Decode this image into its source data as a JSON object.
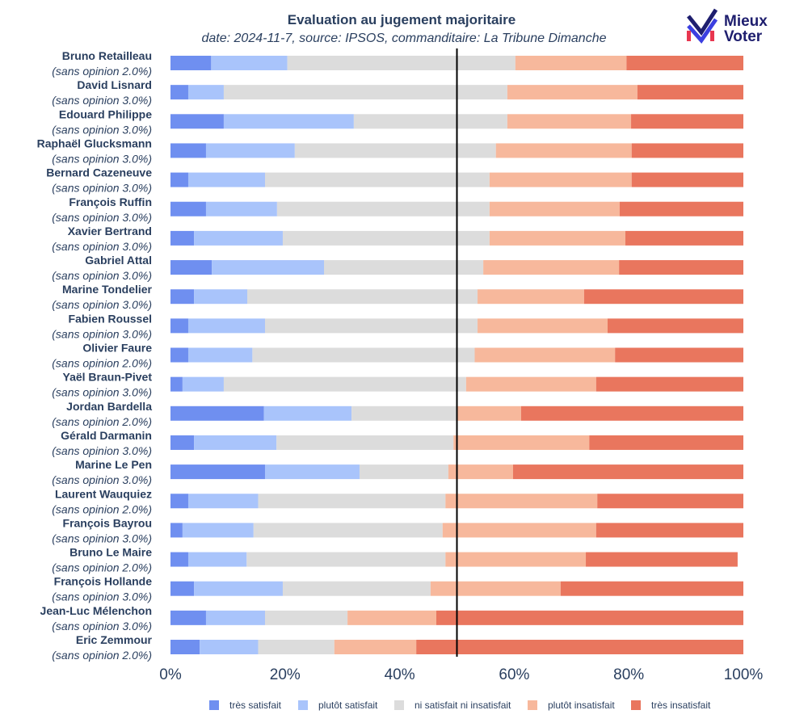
{
  "chart_data": {
    "type": "bar",
    "orientation": "horizontal",
    "stacked": true,
    "title": "Evaluation au jugement majoritaire",
    "subtitle": "date: 2024-11-7, source: IPSOS, commanditaire: La Tribune Dimanche",
    "x_ticks": [
      "0%",
      "20%",
      "40%",
      "60%",
      "80%",
      "100%"
    ],
    "xlim": [
      0,
      100
    ],
    "median_line": 50,
    "legend_position": "bottom",
    "categories": [
      {
        "name": "Bruno Retailleau",
        "sans_opinion": "(sans opinion 2.0%)"
      },
      {
        "name": "David Lisnard",
        "sans_opinion": "(sans opinion 3.0%)"
      },
      {
        "name": "Edouard Philippe",
        "sans_opinion": "(sans opinion 3.0%)"
      },
      {
        "name": "Raphaël Glucksmann",
        "sans_opinion": "(sans opinion 3.0%)"
      },
      {
        "name": "Bernard Cazeneuve",
        "sans_opinion": "(sans opinion 3.0%)"
      },
      {
        "name": "François Ruffin",
        "sans_opinion": "(sans opinion 3.0%)"
      },
      {
        "name": "Xavier Bertrand",
        "sans_opinion": "(sans opinion 3.0%)"
      },
      {
        "name": "Gabriel Attal",
        "sans_opinion": "(sans opinion 3.0%)"
      },
      {
        "name": "Marine Tondelier",
        "sans_opinion": "(sans opinion 3.0%)"
      },
      {
        "name": "Fabien Roussel",
        "sans_opinion": "(sans opinion 3.0%)"
      },
      {
        "name": "Olivier Faure",
        "sans_opinion": "(sans opinion 2.0%)"
      },
      {
        "name": "Yaël Braun-Pivet",
        "sans_opinion": "(sans opinion 3.0%)"
      },
      {
        "name": "Jordan Bardella",
        "sans_opinion": "(sans opinion 2.0%)"
      },
      {
        "name": "Gérald Darmanin",
        "sans_opinion": "(sans opinion 3.0%)"
      },
      {
        "name": "Marine Le Pen",
        "sans_opinion": "(sans opinion 3.0%)"
      },
      {
        "name": "Laurent Wauquiez",
        "sans_opinion": "(sans opinion 2.0%)"
      },
      {
        "name": "François Bayrou",
        "sans_opinion": "(sans opinion 3.0%)"
      },
      {
        "name": "Bruno Le Maire",
        "sans_opinion": "(sans opinion 2.0%)"
      },
      {
        "name": "François Hollande",
        "sans_opinion": "(sans opinion 3.0%)"
      },
      {
        "name": "Jean-Luc Mélenchon",
        "sans_opinion": "(sans opinion 3.0%)"
      },
      {
        "name": "Eric Zemmour",
        "sans_opinion": "(sans opinion 2.0%)"
      }
    ],
    "series": [
      {
        "name": "très satisfait",
        "color": "#6f8ff0",
        "values": [
          7.1,
          3.1,
          9.3,
          6.2,
          3.1,
          6.2,
          4.1,
          7.2,
          4.1,
          3.1,
          3.1,
          2.1,
          16.3,
          4.1,
          16.5,
          3.1,
          2.1,
          3.1,
          4.1,
          6.2,
          5.1
        ]
      },
      {
        "name": "plutôt satisfait",
        "color": "#a9c4fb",
        "values": [
          13.3,
          6.2,
          22.7,
          15.5,
          13.4,
          12.4,
          15.5,
          19.6,
          9.3,
          13.4,
          11.2,
          7.2,
          15.3,
          14.4,
          16.5,
          12.2,
          12.4,
          10.2,
          15.5,
          10.3,
          10.2
        ]
      },
      {
        "name": "ni satisfait ni insatisfait",
        "color": "#dcdcdc",
        "values": [
          39.8,
          49.5,
          26.8,
          35.1,
          39.2,
          37.1,
          36.1,
          27.8,
          40.2,
          37.1,
          38.8,
          42.3,
          18.4,
          30.9,
          15.5,
          32.7,
          33.0,
          34.7,
          25.8,
          14.4,
          13.3
        ]
      },
      {
        "name": "plutôt insatisfait",
        "color": "#f7b89c",
        "values": [
          19.4,
          22.7,
          21.6,
          23.7,
          24.8,
          22.7,
          23.7,
          23.7,
          18.6,
          22.7,
          24.5,
          22.7,
          11.2,
          23.7,
          11.3,
          26.5,
          26.8,
          24.5,
          22.7,
          15.5,
          14.3
        ]
      },
      {
        "name": "très insatisfait",
        "color": "#e9765e",
        "values": [
          20.4,
          18.5,
          19.6,
          19.5,
          19.5,
          21.6,
          20.6,
          21.7,
          27.8,
          23.7,
          22.4,
          25.7,
          38.8,
          26.9,
          40.2,
          25.5,
          25.7,
          26.5,
          31.9,
          53.6,
          57.1
        ]
      }
    ]
  },
  "logo": {
    "line1": "Mieux",
    "line2": "Voter"
  }
}
